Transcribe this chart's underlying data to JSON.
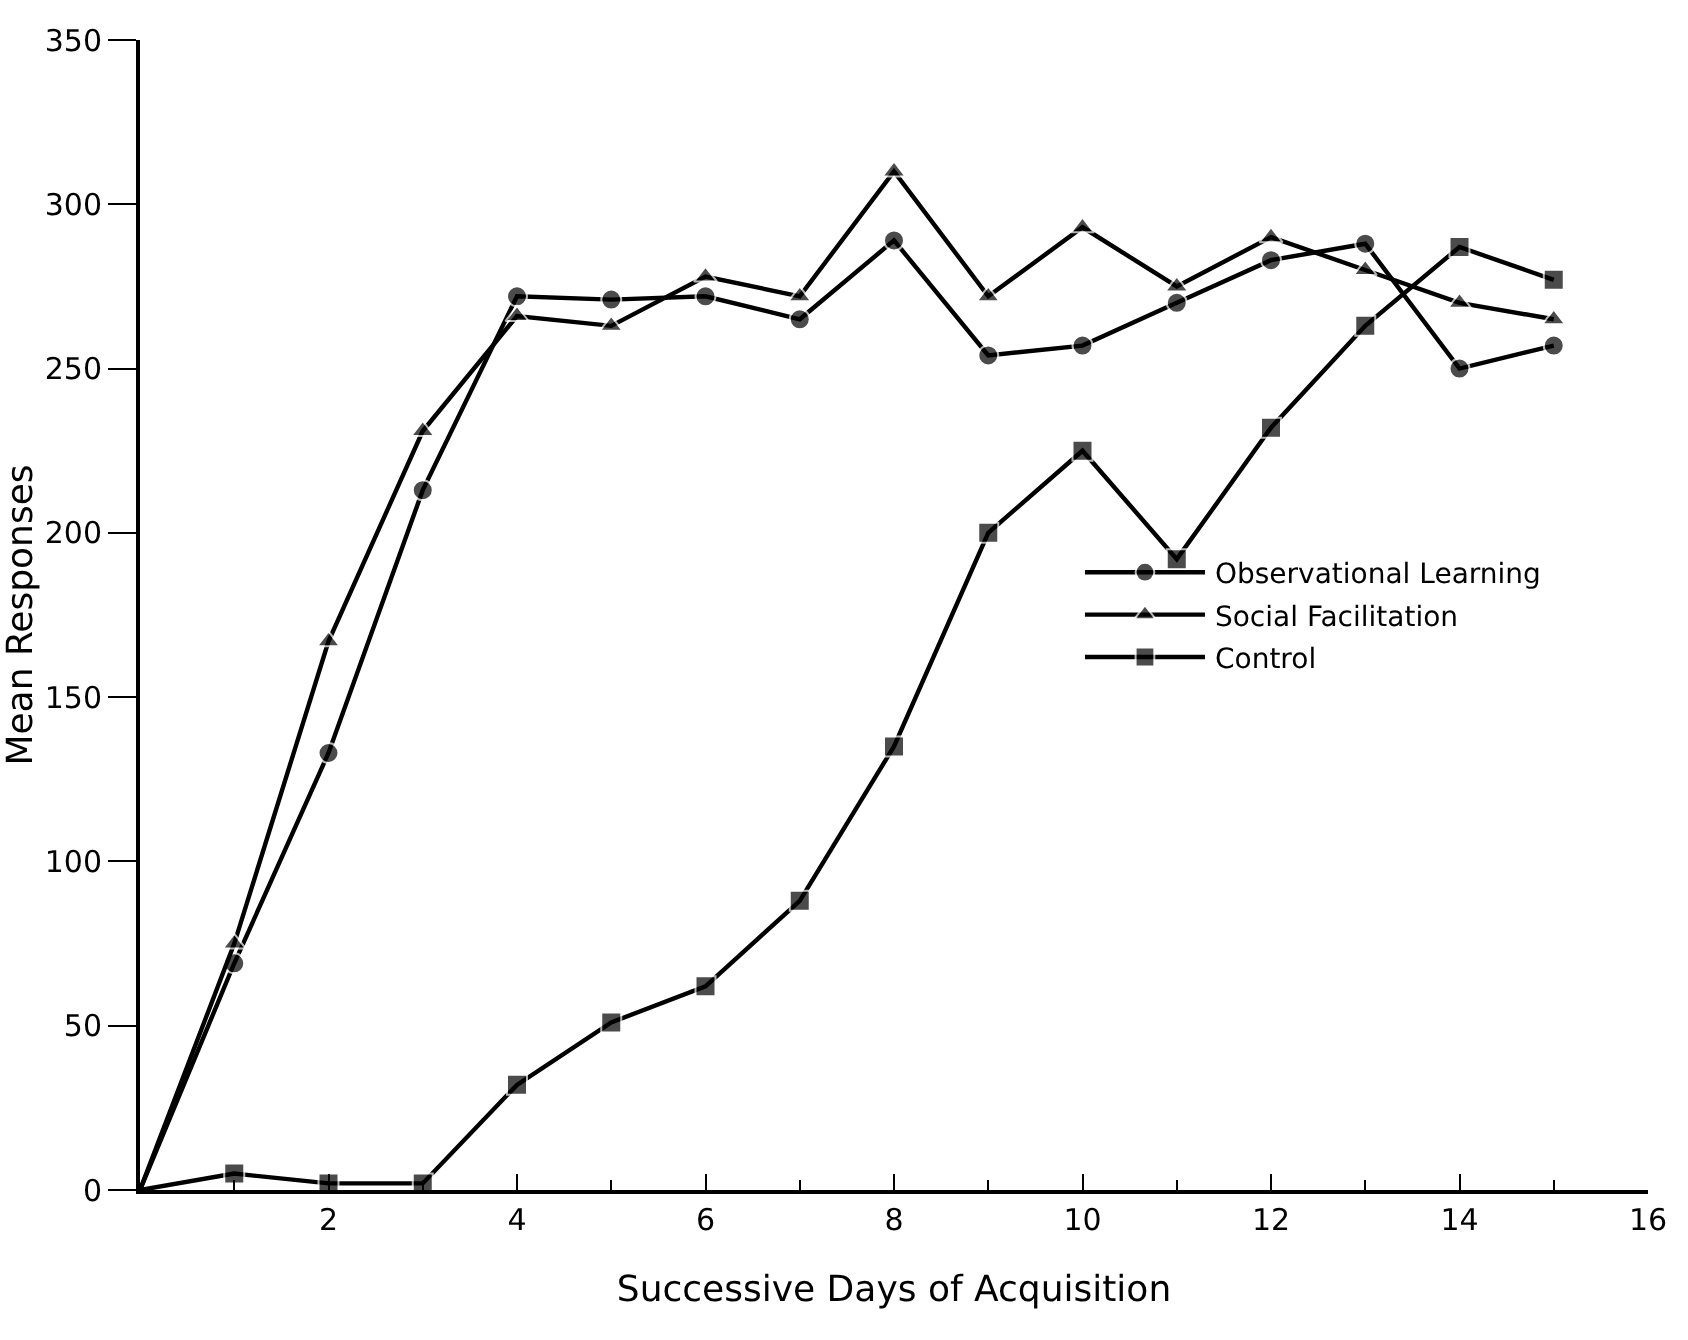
{
  "chart_data": {
    "type": "line",
    "xlabel": "Successive Days of Acquisition",
    "ylabel": "Mean Responses",
    "x": [
      0,
      1,
      2,
      3,
      4,
      5,
      6,
      7,
      8,
      9,
      10,
      11,
      12,
      13,
      14,
      15
    ],
    "series": [
      {
        "name": "Observational Learning",
        "color": "#000000",
        "marker": "circle",
        "values": [
          0,
          69,
          133,
          213,
          272,
          271,
          272,
          265,
          289,
          254,
          257,
          270,
          283,
          288,
          250,
          257
        ]
      },
      {
        "name": "Social Facilitation",
        "color": "#000000",
        "marker": "triangle",
        "values": [
          0,
          75,
          167,
          231,
          266,
          263,
          278,
          272,
          310,
          272,
          293,
          275,
          290,
          280,
          270,
          265
        ]
      },
      {
        "name": "Control",
        "color": "#000000",
        "marker": "square",
        "values": [
          0,
          5,
          2,
          2,
          32,
          51,
          62,
          88,
          135,
          200,
          225,
          192,
          232,
          263,
          287,
          277
        ]
      }
    ],
    "xlim": [
      0,
      16
    ],
    "xticks": [
      2,
      4,
      6,
      8,
      10,
      12,
      14,
      16
    ],
    "ylim": [
      0,
      350
    ],
    "yticks": [
      0,
      50,
      100,
      150,
      200,
      250,
      300,
      350
    ],
    "grid": false,
    "legend": "right",
    "line_style": "solid"
  }
}
